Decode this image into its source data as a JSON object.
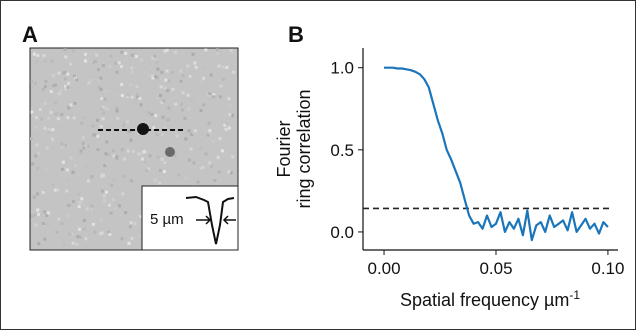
{
  "panel_a": {
    "label": "A",
    "scale_label": "5 µm"
  },
  "chart_data": {
    "type": "line",
    "label": "B",
    "ylabel": [
      "Fourier",
      "ring correlation"
    ],
    "xlabel": "Spatial frequency µm",
    "xlabel_sup": "-1",
    "xlim": [
      -0.0094,
      0.1045
    ],
    "ylim": [
      -0.11,
      1.12
    ],
    "xticks": [
      {
        "value": 0,
        "label": "0.00"
      },
      {
        "value": 0.05,
        "label": "0.05"
      },
      {
        "value": 0.1,
        "label": "0.10"
      }
    ],
    "yticks": [
      {
        "value": 0,
        "label": "0.0"
      },
      {
        "value": 0.5,
        "label": "0.5"
      },
      {
        "value": 1,
        "label": "1.0"
      }
    ],
    "threshold": 0.143,
    "x": [
      0,
      0.002,
      0.004,
      0.006,
      0.008,
      0.01,
      0.012,
      0.014,
      0.016,
      0.018,
      0.02,
      0.022,
      0.024,
      0.026,
      0.028,
      0.03,
      0.032,
      0.034,
      0.036,
      0.038,
      0.04,
      0.042,
      0.044,
      0.046,
      0.048,
      0.05,
      0.052,
      0.054,
      0.056,
      0.058,
      0.06,
      0.062,
      0.064,
      0.066,
      0.068,
      0.07,
      0.072,
      0.074,
      0.076,
      0.078,
      0.08,
      0.082,
      0.084,
      0.086,
      0.088,
      0.09,
      0.092,
      0.094,
      0.096,
      0.098,
      0.1
    ],
    "series": [
      {
        "color": "#1a75bb",
        "values": [
          1.0,
          1.0,
          1.0,
          0.995,
          0.995,
          0.99,
          0.985,
          0.975,
          0.96,
          0.93,
          0.88,
          0.78,
          0.68,
          0.6,
          0.5,
          0.44,
          0.37,
          0.3,
          0.2,
          0.1,
          0.05,
          0.06,
          0.02,
          0.1,
          0.03,
          0.05,
          0.12,
          0.0,
          0.06,
          0.02,
          0.08,
          -0.02,
          0.13,
          -0.05,
          0.04,
          0.06,
          0.0,
          0.1,
          0.03,
          0.05,
          0.07,
          0.01,
          0.12,
          0.0,
          0.04,
          0.08,
          0.02,
          0.05,
          -0.01,
          0.06,
          0.03
        ]
      }
    ]
  }
}
